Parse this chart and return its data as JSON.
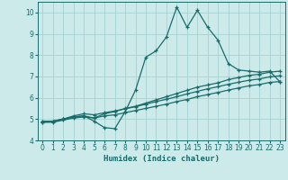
{
  "xlabel": "Humidex (Indice chaleur)",
  "xlim": [
    -0.5,
    23.5
  ],
  "ylim": [
    4,
    10.5
  ],
  "yticks": [
    4,
    5,
    6,
    7,
    8,
    9,
    10
  ],
  "xticks": [
    0,
    1,
    2,
    3,
    4,
    5,
    6,
    7,
    8,
    9,
    10,
    11,
    12,
    13,
    14,
    15,
    16,
    17,
    18,
    19,
    20,
    21,
    22,
    23
  ],
  "bg_color": "#cceaea",
  "grid_color": "#aad4d4",
  "line_color": "#1a6b6b",
  "line1_x": [
    0,
    1,
    2,
    3,
    4,
    5,
    6,
    7,
    8,
    9,
    10,
    11,
    12,
    13,
    14,
    15,
    16,
    17,
    18,
    19,
    20,
    21,
    22,
    23
  ],
  "line1_y": [
    4.9,
    4.9,
    5.0,
    5.1,
    5.15,
    4.9,
    4.6,
    4.55,
    5.35,
    6.35,
    7.9,
    8.2,
    8.85,
    10.25,
    9.3,
    10.1,
    9.3,
    8.7,
    7.6,
    7.3,
    7.25,
    7.2,
    7.25,
    6.75
  ],
  "line2_x": [
    0,
    1,
    2,
    3,
    4,
    5,
    6,
    7,
    8,
    9,
    10,
    11,
    12,
    13,
    14,
    15,
    16,
    17,
    18,
    19,
    20,
    21,
    22,
    23
  ],
  "line2_y": [
    4.9,
    4.9,
    5.0,
    5.1,
    5.15,
    5.05,
    5.25,
    5.35,
    5.5,
    5.6,
    5.75,
    5.9,
    6.05,
    6.2,
    6.35,
    6.5,
    6.6,
    6.7,
    6.85,
    6.95,
    7.05,
    7.1,
    7.2,
    7.25
  ],
  "line3_x": [
    0,
    1,
    2,
    3,
    4,
    5,
    6,
    7,
    8,
    9,
    10,
    11,
    12,
    13,
    14,
    15,
    16,
    17,
    18,
    19,
    20,
    21,
    22,
    23
  ],
  "line3_y": [
    4.85,
    4.9,
    5.0,
    5.15,
    5.25,
    5.2,
    5.3,
    5.38,
    5.48,
    5.58,
    5.7,
    5.82,
    5.93,
    6.05,
    6.18,
    6.3,
    6.42,
    6.52,
    6.63,
    6.73,
    6.82,
    6.88,
    6.98,
    7.03
  ],
  "line4_x": [
    0,
    1,
    2,
    3,
    4,
    5,
    6,
    7,
    8,
    9,
    10,
    11,
    12,
    13,
    14,
    15,
    16,
    17,
    18,
    19,
    20,
    21,
    22,
    23
  ],
  "line4_y": [
    4.85,
    4.85,
    4.95,
    5.05,
    5.1,
    5.05,
    5.15,
    5.2,
    5.3,
    5.4,
    5.5,
    5.6,
    5.7,
    5.82,
    5.92,
    6.05,
    6.15,
    6.25,
    6.36,
    6.46,
    6.56,
    6.62,
    6.72,
    6.76
  ]
}
